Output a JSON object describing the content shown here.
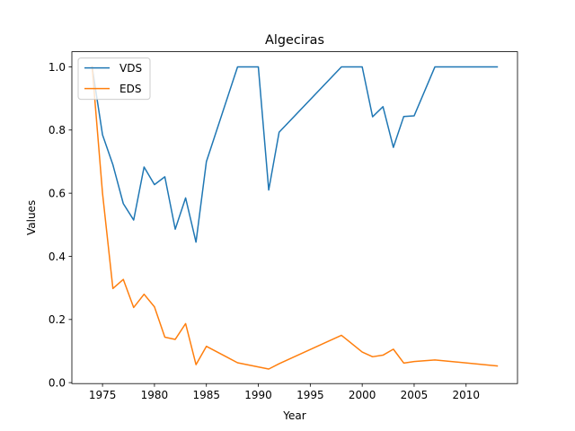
{
  "chart_data": {
    "type": "line",
    "title": "Algeciras",
    "xlabel": "Year",
    "ylabel": "Values",
    "xlim": [
      1972.05,
      2014.95
    ],
    "ylim": [
      -0.003,
      1.048
    ],
    "xticks": [
      1975,
      1980,
      1985,
      1990,
      1995,
      2000,
      2005,
      2010
    ],
    "yticks": [
      0.0,
      0.2,
      0.4,
      0.6,
      0.8,
      1.0
    ],
    "ytick_labels": [
      "0.0",
      "0.2",
      "0.4",
      "0.6",
      "0.8",
      "1.0"
    ],
    "legend_position": "top-left",
    "grid": false,
    "series": [
      {
        "name": "VDS",
        "color": "#1f77b4",
        "x": [
          1974,
          1975,
          1976,
          1977,
          1978,
          1979,
          1980,
          1981,
          1982,
          1983,
          1984,
          1985,
          1988,
          1989,
          1990,
          1991,
          1992,
          1998,
          1999,
          2000,
          2001,
          2002,
          2003,
          2004,
          2005,
          2007,
          2013
        ],
        "y": [
          1.0,
          0.785,
          0.69,
          0.567,
          0.515,
          0.683,
          0.627,
          0.652,
          0.486,
          0.585,
          0.445,
          0.7,
          1.0,
          1.0,
          1.0,
          0.61,
          0.793,
          1.0,
          1.0,
          1.0,
          0.842,
          0.874,
          0.745,
          0.843,
          0.845,
          1.0,
          1.0
        ]
      },
      {
        "name": "EDS",
        "color": "#ff7f0e",
        "x": [
          1974,
          1975,
          1976,
          1977,
          1978,
          1979,
          1980,
          1981,
          1982,
          1983,
          1984,
          1985,
          1988,
          1991,
          1992,
          1998,
          2000,
          2001,
          2002,
          2003,
          2004,
          2005,
          2007,
          2013
        ],
        "y": [
          1.0,
          0.6,
          0.298,
          0.327,
          0.238,
          0.28,
          0.24,
          0.144,
          0.137,
          0.187,
          0.057,
          0.115,
          0.063,
          0.043,
          0.06,
          0.15,
          0.097,
          0.082,
          0.087,
          0.106,
          0.062,
          0.067,
          0.072,
          0.053
        ]
      }
    ]
  }
}
